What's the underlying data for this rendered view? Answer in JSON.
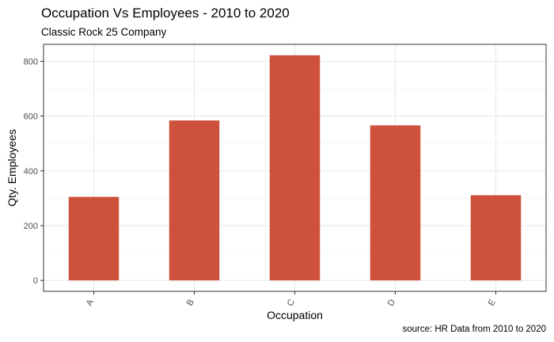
{
  "chart_data": {
    "type": "bar",
    "title": "Occupation Vs Employees - 2010 to 2020",
    "subtitle": "Classic Rock 25 Company",
    "caption": "source: HR Data from 2010 to 2020",
    "xlabel": "Occupation",
    "ylabel": "Qty. Employees",
    "categories": [
      "A",
      "B",
      "C",
      "D",
      "E"
    ],
    "values": [
      305,
      584,
      822,
      566,
      311
    ],
    "ylim": [
      -40,
      862
    ],
    "yticks": [
      0,
      200,
      400,
      600,
      800
    ],
    "grid": true,
    "bar_color": "#CD513B"
  }
}
